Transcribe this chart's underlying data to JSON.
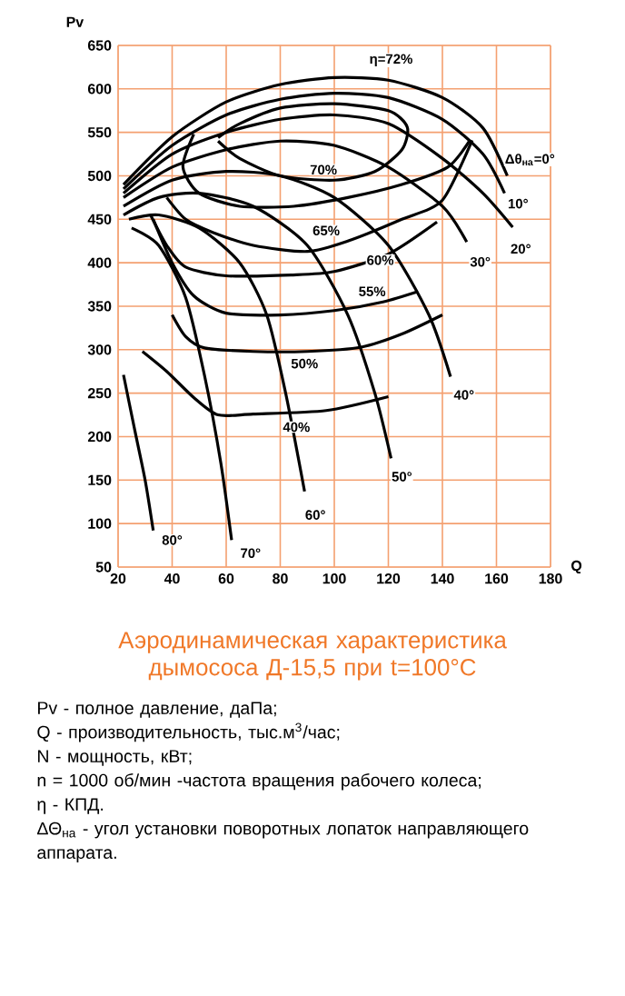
{
  "chart_data": {
    "type": "line",
    "title": "Аэродинамическая характеристика дымососа Д-15,5 при t=100°C",
    "xlabel": "Q",
    "ylabel": "Pv",
    "xlim": [
      20,
      180
    ],
    "ylim": [
      50,
      650
    ],
    "xticks": [
      20,
      40,
      60,
      80,
      100,
      120,
      140,
      160,
      180
    ],
    "yticks": [
      50,
      100,
      150,
      200,
      250,
      300,
      350,
      400,
      450,
      500,
      550,
      600,
      650
    ],
    "grid": true,
    "series": [
      {
        "name": "Δθ$_{на}$=0°",
        "color": "#000000",
        "x": [
          22,
          40,
          60,
          80,
          100,
          120,
          140,
          155,
          164
        ],
        "values": [
          490,
          545,
          585,
          605,
          613,
          610,
          590,
          555,
          500
        ]
      },
      {
        "color": "#000000",
        "x": [
          22,
          40,
          60,
          80,
          100,
          120,
          140,
          155,
          163
        ],
        "values": [
          485,
          535,
          570,
          588,
          595,
          590,
          565,
          525,
          480
        ]
      },
      {
        "color": "#000000",
        "x": [
          22,
          40,
          60,
          80,
          100,
          120,
          140,
          155,
          166
        ],
        "values": [
          480,
          525,
          550,
          565,
          570,
          560,
          520,
          480,
          441
        ]
      },
      {
        "color": "#000000",
        "x": [
          22,
          40,
          60,
          80,
          100,
          120,
          140,
          149
        ],
        "values": [
          475,
          510,
          530,
          540,
          535,
          510,
          465,
          424
        ]
      },
      {
        "color": "#000000",
        "x": [
          22,
          40,
          60,
          80,
          100,
          120,
          135,
          143
        ],
        "values": [
          465,
          495,
          505,
          500,
          475,
          420,
          340,
          269
        ]
      },
      {
        "color": "#000000",
        "x": [
          22,
          35,
          50,
          70,
          90,
          105,
          115,
          121
        ],
        "values": [
          455,
          475,
          480,
          465,
          420,
          340,
          250,
          175
        ]
      },
      {
        "color": "#000000",
        "x": [
          24,
          35,
          50,
          65,
          75,
          82,
          89
        ],
        "values": [
          450,
          455,
          440,
          400,
          340,
          250,
          137
        ]
      },
      {
        "color": "#000000",
        "x": [
          25,
          35,
          45,
          52,
          58,
          62
        ],
        "values": [
          440,
          420,
          360,
          270,
          170,
          81
        ]
      },
      {
        "color": "#000000",
        "x": [
          22,
          26,
          30,
          33
        ],
        "values": [
          271,
          210,
          150,
          92
        ]
      },
      {
        "color": "#000000",
        "x": [
          57,
          65,
          80,
          100,
          115,
          125,
          127,
          120,
          100,
          80,
          65,
          57
        ],
        "values": [
          540,
          520,
          500,
          495,
          505,
          530,
          556,
          575,
          583,
          578,
          560,
          544
        ]
      },
      {
        "color": "#000000",
        "x": [
          48,
          44,
          50,
          65,
          85,
          105,
          125,
          142,
          150
        ],
        "values": [
          548,
          510,
          480,
          465,
          465,
          475,
          490,
          510,
          540
        ]
      },
      {
        "color": "#000000",
        "x": [
          38,
          45,
          55,
          70,
          90,
          105,
          125,
          140,
          151
        ],
        "values": [
          475,
          450,
          435,
          420,
          413,
          425,
          450,
          472,
          541
        ]
      },
      {
        "color": "#000000",
        "x": [
          32,
          38,
          45,
          60,
          84,
          100,
          120,
          138
        ],
        "values": [
          455,
          420,
          395,
          385,
          386,
          390,
          410,
          447
        ]
      },
      {
        "color": "#000000",
        "x": [
          33,
          40,
          48,
          60,
          80,
          100,
          118,
          131
        ],
        "values": [
          450,
          400,
          362,
          342,
          340,
          345,
          355,
          367
        ]
      },
      {
        "color": "#000000",
        "x": [
          40,
          45,
          52,
          70,
          90,
          110,
          125,
          140
        ],
        "values": [
          340,
          315,
          302,
          298,
          298,
          303,
          318,
          340
        ]
      },
      {
        "color": "#000000",
        "x": [
          29,
          38,
          48,
          57,
          70,
          97,
          120
        ],
        "values": [
          298,
          275,
          245,
          225,
          226,
          230,
          246
        ]
      }
    ],
    "annotations": [
      {
        "text": "10°",
        "x": 168,
        "y": 468
      },
      {
        "text": "20°",
        "x": 169,
        "y": 416
      },
      {
        "text": "30°",
        "x": 154,
        "y": 401
      },
      {
        "text": "40°",
        "x": 148,
        "y": 248
      },
      {
        "text": "50°",
        "x": 125,
        "y": 154
      },
      {
        "text": "60°",
        "x": 93,
        "y": 110
      },
      {
        "text": "70°",
        "x": 69,
        "y": 66
      },
      {
        "text": "80°",
        "x": 40,
        "y": 81
      },
      {
        "text": "η=72%",
        "x": 121,
        "y": 633
      },
      {
        "text": "70%",
        "x": 96,
        "y": 507
      },
      {
        "text": "65%",
        "x": 97,
        "y": 437
      },
      {
        "text": "60%",
        "x": 117,
        "y": 403
      },
      {
        "text": "55%",
        "x": 114,
        "y": 367
      },
      {
        "text": "50%",
        "x": 89,
        "y": 284
      },
      {
        "text": "40%",
        "x": 86,
        "y": 211
      },
      "Pv - полное давление, даПа;",
      "Q - производительность, тыс.м$^{3}$/час;",
      "N - мощность, кВт;",
      "n = 1000 об/мин -частота вращения рабочего колеса;",
      "η - КПД.",
      "ΔΘ$_{на}$ - угол установки поворотных лопаток направляющего аппарата."
    ]
  }
}
